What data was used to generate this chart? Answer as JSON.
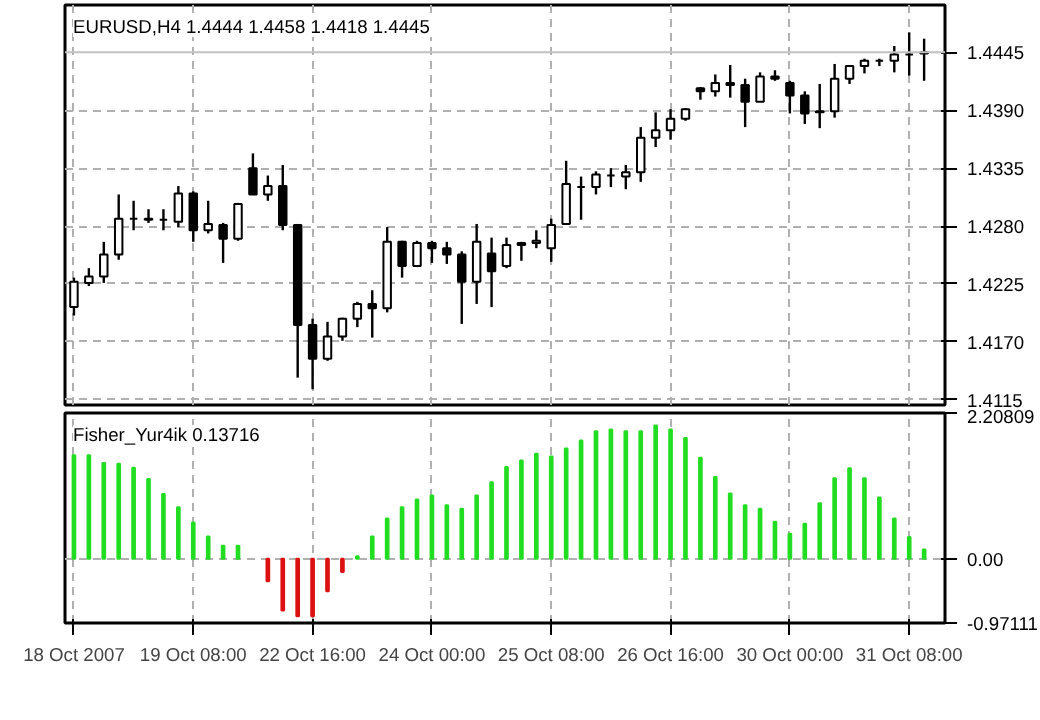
{
  "chart_data": [
    {
      "type": "candlestick",
      "title": "EURUSD,H4  1.4444 1.4458 1.4418 1.4445",
      "ohlc": [
        [
          1.4203,
          1.4231,
          1.4195,
          1.4227
        ],
        [
          1.4226,
          1.424,
          1.4223,
          1.4232
        ],
        [
          1.4232,
          1.4265,
          1.4226,
          1.4253
        ],
        [
          1.4253,
          1.431,
          1.4248,
          1.4287
        ],
        [
          1.4287,
          1.4304,
          1.4276,
          1.4287
        ],
        [
          1.4287,
          1.4296,
          1.4283,
          1.4286
        ],
        [
          1.4286,
          1.4296,
          1.4276,
          1.4286
        ],
        [
          1.4284,
          1.4318,
          1.4279,
          1.4311
        ],
        [
          1.4311,
          1.4313,
          1.4265,
          1.4276
        ],
        [
          1.4276,
          1.4304,
          1.4273,
          1.4282
        ],
        [
          1.4281,
          1.4283,
          1.4245,
          1.4268
        ],
        [
          1.4268,
          1.4302,
          1.4266,
          1.4301
        ],
        [
          1.4335,
          1.4349,
          1.431,
          1.431
        ],
        [
          1.431,
          1.4328,
          1.4304,
          1.4318
        ],
        [
          1.4318,
          1.4338,
          1.4276,
          1.4281
        ],
        [
          1.4281,
          1.4282,
          1.4136,
          1.4186
        ],
        [
          1.4186,
          1.4192,
          1.4125,
          1.4154
        ],
        [
          1.4154,
          1.4189,
          1.4152,
          1.4175
        ],
        [
          1.4175,
          1.4193,
          1.4171,
          1.4192
        ],
        [
          1.4192,
          1.4208,
          1.4184,
          1.4206
        ],
        [
          1.4206,
          1.4219,
          1.4174,
          1.4202
        ],
        [
          1.4202,
          1.4279,
          1.4198,
          1.4265
        ],
        [
          1.4265,
          1.4266,
          1.4231,
          1.4242
        ],
        [
          1.4242,
          1.4266,
          1.4241,
          1.4264
        ],
        [
          1.4264,
          1.4266,
          1.4245,
          1.4259
        ],
        [
          1.4259,
          1.4265,
          1.4244,
          1.4253
        ],
        [
          1.4253,
          1.4256,
          1.4187,
          1.4227
        ],
        [
          1.4227,
          1.4282,
          1.4206,
          1.4265
        ],
        [
          1.4254,
          1.4269,
          1.4203,
          1.4237
        ],
        [
          1.4242,
          1.4269,
          1.424,
          1.4262
        ],
        [
          1.4262,
          1.4265,
          1.4247,
          1.4264
        ],
        [
          1.4264,
          1.4276,
          1.4259,
          1.4266
        ],
        [
          1.4259,
          1.4287,
          1.4246,
          1.4281
        ],
        [
          1.4282,
          1.4342,
          1.4282,
          1.432
        ],
        [
          1.4317,
          1.4327,
          1.4286,
          1.4317
        ],
        [
          1.4317,
          1.4332,
          1.431,
          1.4329
        ],
        [
          1.4328,
          1.4335,
          1.4317,
          1.4328
        ],
        [
          1.4327,
          1.4338,
          1.4315,
          1.4331
        ],
        [
          1.4331,
          1.4374,
          1.4322,
          1.4364
        ],
        [
          1.4364,
          1.4388,
          1.4355,
          1.4371
        ],
        [
          1.4371,
          1.4391,
          1.4362,
          1.4382
        ],
        [
          1.4382,
          1.4392,
          1.438,
          1.4391
        ],
        [
          1.4411,
          1.4412,
          1.44,
          1.4408
        ],
        [
          1.4408,
          1.4424,
          1.4403,
          1.4416
        ],
        [
          1.4416,
          1.4433,
          1.4402,
          1.4414
        ],
        [
          1.4414,
          1.442,
          1.4374,
          1.4398
        ],
        [
          1.4398,
          1.4426,
          1.4398,
          1.4422
        ],
        [
          1.4422,
          1.4428,
          1.4418,
          1.442
        ],
        [
          1.4416,
          1.4418,
          1.4387,
          1.4404
        ],
        [
          1.4404,
          1.4408,
          1.4377,
          1.4387
        ],
        [
          1.4388,
          1.4415,
          1.4373,
          1.4389
        ],
        [
          1.4389,
          1.4434,
          1.4383,
          1.442
        ],
        [
          1.442,
          1.4433,
          1.4415,
          1.4432
        ],
        [
          1.4432,
          1.4439,
          1.4425,
          1.4437
        ],
        [
          1.4437,
          1.4439,
          1.4432,
          1.4437
        ],
        [
          1.4437,
          1.4451,
          1.4426,
          1.4443
        ],
        [
          1.4443,
          1.4464,
          1.4423,
          1.4443
        ],
        [
          1.4444,
          1.4458,
          1.4418,
          1.4445
        ]
      ],
      "color": "#000000",
      "ylim": [
        1.411,
        1.449
      ],
      "yticks": [
        {
          "value": 1.4115,
          "label": "1.4115"
        },
        {
          "value": 1.417,
          "label": "1.4170"
        },
        {
          "value": 1.4225,
          "label": "1.4225"
        },
        {
          "value": 1.428,
          "label": "1.4280"
        },
        {
          "value": 1.4335,
          "label": "1.4335"
        },
        {
          "value": 1.439,
          "label": "1.4390"
        }
      ],
      "ref_lines": [
        {
          "axis": "y",
          "value": 1.4445,
          "label": "1.4445",
          "color": "#c0c0c0"
        }
      ],
      "grid": true,
      "tick_labels": "y"
    },
    {
      "type": "bar",
      "title": "Fisher_Yur4ik 0.13716",
      "categories": [
        "18 Oct 2007",
        null,
        null,
        null,
        null,
        null,
        null,
        null,
        "19 Oct 08:00",
        null,
        null,
        null,
        null,
        null,
        null,
        null,
        "22 Oct 16:00",
        null,
        null,
        null,
        null,
        null,
        null,
        null,
        "24 Oct 00:00",
        null,
        null,
        null,
        null,
        null,
        null,
        null,
        "25 Oct 08:00",
        null,
        null,
        null,
        null,
        null,
        null,
        null,
        "26 Oct 16:00",
        null,
        null,
        null,
        null,
        null,
        null,
        null,
        "30 Oct 00:00",
        null,
        null,
        null,
        null,
        null,
        null,
        null,
        "31 Oct 08:00",
        null
      ],
      "values": [
        1.57,
        1.57,
        1.45,
        1.44,
        1.38,
        1.21,
        0.98,
        0.78,
        0.55,
        0.34,
        0.2,
        0.2,
        null,
        -0.34,
        -0.78,
        -0.87,
        -0.87,
        -0.49,
        -0.2,
        0.04,
        0.34,
        0.61,
        0.78,
        0.9,
        0.96,
        0.81,
        0.76,
        0.96,
        1.16,
        1.39,
        1.49,
        1.59,
        1.55,
        1.67,
        1.79,
        1.93,
        1.96,
        1.93,
        1.93,
        2.02,
        1.96,
        1.83,
        1.53,
        1.24,
        0.99,
        0.81,
        0.76,
        0.56,
        0.38,
        0.53,
        0.84,
        1.22,
        1.37,
        1.22,
        0.93,
        0.61,
        0.33,
        0.14
      ],
      "colors": [
        "#22dd22",
        "#22dd22",
        "#22dd22",
        "#22dd22",
        "#22dd22",
        "#22dd22",
        "#22dd22",
        "#22dd22",
        "#22dd22",
        "#22dd22",
        "#22dd22",
        "#22dd22",
        "#22dd22",
        "#dd1111",
        "#dd1111",
        "#dd1111",
        "#dd1111",
        "#dd1111",
        "#dd1111",
        "#22dd22",
        "#22dd22",
        "#22dd22",
        "#22dd22",
        "#22dd22",
        "#22dd22",
        "#22dd22",
        "#22dd22",
        "#22dd22",
        "#22dd22",
        "#22dd22",
        "#22dd22",
        "#22dd22",
        "#22dd22",
        "#22dd22",
        "#22dd22",
        "#22dd22",
        "#22dd22",
        "#22dd22",
        "#22dd22",
        "#22dd22",
        "#22dd22",
        "#22dd22",
        "#22dd22",
        "#22dd22",
        "#22dd22",
        "#22dd22",
        "#22dd22",
        "#22dd22",
        "#22dd22",
        "#22dd22",
        "#22dd22",
        "#22dd22",
        "#22dd22",
        "#22dd22",
        "#22dd22",
        "#22dd22",
        "#22dd22",
        "#22dd22"
      ],
      "ylim": [
        -0.97111,
        2.20809
      ],
      "yticks": [
        {
          "value": -0.97111,
          "label": "-0.97111"
        },
        {
          "value": 0,
          "label": "0.00"
        },
        {
          "value": 2.20809,
          "label": "2.20809"
        }
      ],
      "grid": true
    }
  ]
}
